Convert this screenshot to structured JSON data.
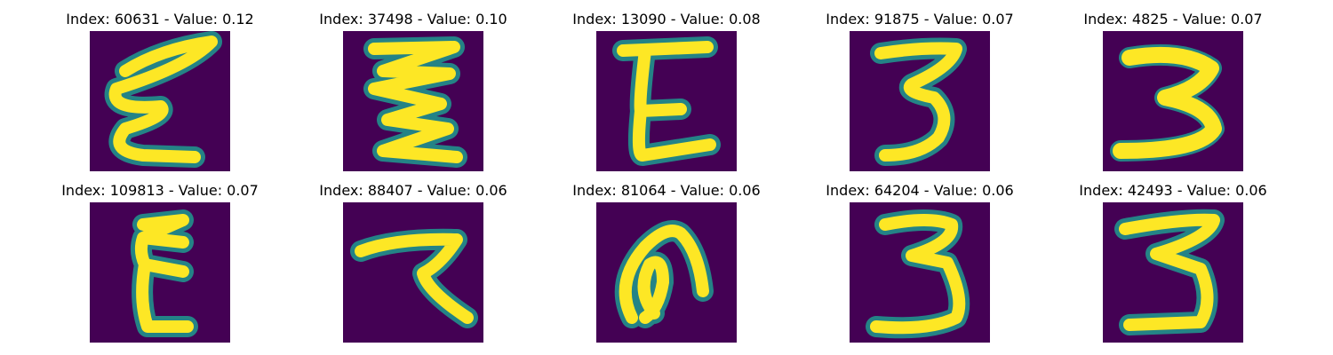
{
  "colors": {
    "background": "#440154",
    "stroke": "#fde725",
    "edge": "#21918c"
  },
  "panels": [
    {
      "label": "Index: 60631 - Value: 0.12",
      "glyph": "handwritten 3 (Σ-like)"
    },
    {
      "label": "Index: 37498 - Value: 0.10",
      "glyph": "handwritten 3 (zigzag)"
    },
    {
      "label": "Index: 13090 - Value: 0.08",
      "glyph": "handwritten E"
    },
    {
      "label": "Index: 91875 - Value: 0.07",
      "glyph": "handwritten 3"
    },
    {
      "label": "Index: 4825 - Value: 0.07",
      "glyph": "handwritten 3 (bold)"
    },
    {
      "label": "Index: 109813 - Value: 0.07",
      "glyph": "handwritten 3 (narrow)"
    },
    {
      "label": "Index: 88407 - Value: 0.06",
      "glyph": "handwritten 7-like"
    },
    {
      "label": "Index: 81064 - Value: 0.06",
      "glyph": "handwritten loop"
    },
    {
      "label": "Index: 64204 - Value: 0.06",
      "glyph": "handwritten 3"
    },
    {
      "label": "Index: 42493 - Value: 0.06",
      "glyph": "handwritten 3"
    }
  ]
}
